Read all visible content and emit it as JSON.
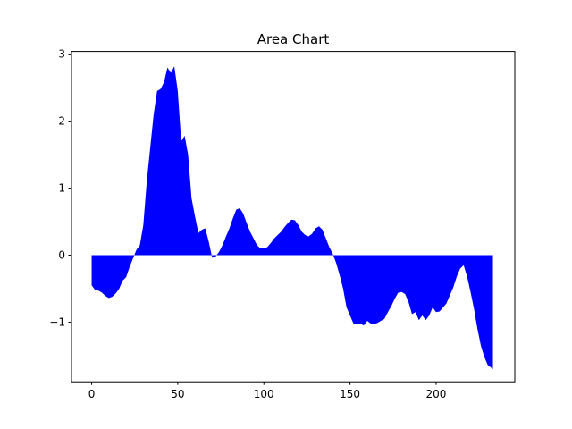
{
  "chart_data": {
    "type": "area",
    "title": "Area Chart",
    "xlabel": "",
    "ylabel": "",
    "xlim": [
      -11.7,
      245.7
    ],
    "ylim": [
      -1.89,
      3.04
    ],
    "xticks": [
      0,
      50,
      100,
      150,
      200
    ],
    "yticks": [
      -1,
      0,
      1,
      2,
      3
    ],
    "xtick_labels": [
      "0",
      "50",
      "100",
      "150",
      "200"
    ],
    "ytick_labels": [
      "−1",
      "0",
      "1",
      "2",
      "3"
    ],
    "grid": false,
    "fill_color": "#0000ff",
    "baseline": 0,
    "x": [
      0,
      2,
      4,
      6,
      8,
      10,
      12,
      14,
      16,
      18,
      20,
      22,
      24,
      26,
      28,
      30,
      32,
      34,
      36,
      38,
      40,
      42,
      44,
      46,
      48,
      50,
      52,
      54,
      56,
      58,
      60,
      62,
      64,
      66,
      68,
      70,
      72,
      74,
      76,
      78,
      80,
      82,
      84,
      86,
      88,
      90,
      92,
      94,
      96,
      98,
      100,
      102,
      104,
      106,
      108,
      110,
      112,
      114,
      116,
      118,
      120,
      122,
      124,
      126,
      128,
      130,
      132,
      134,
      136,
      138,
      140,
      142,
      144,
      146,
      148,
      150,
      152,
      154,
      156,
      158,
      160,
      162,
      164,
      166,
      168,
      170,
      172,
      174,
      176,
      178,
      180,
      182,
      184,
      186,
      188,
      190,
      192,
      194,
      196,
      198,
      200,
      202,
      204,
      206,
      208,
      210,
      212,
      214,
      216,
      218,
      220,
      222,
      224,
      226,
      228,
      230,
      232,
      233
    ],
    "y": [
      -0.45,
      -0.52,
      -0.53,
      -0.56,
      -0.61,
      -0.64,
      -0.62,
      -0.57,
      -0.5,
      -0.38,
      -0.33,
      -0.18,
      -0.05,
      0.08,
      0.15,
      0.45,
      1.1,
      1.6,
      2.1,
      2.45,
      2.48,
      2.58,
      2.8,
      2.72,
      2.82,
      2.45,
      1.7,
      1.78,
      1.5,
      0.85,
      0.58,
      0.33,
      0.38,
      0.4,
      0.2,
      -0.04,
      -0.02,
      0.05,
      0.15,
      0.28,
      0.4,
      0.55,
      0.68,
      0.7,
      0.62,
      0.48,
      0.35,
      0.25,
      0.15,
      0.1,
      0.1,
      0.12,
      0.18,
      0.25,
      0.3,
      0.35,
      0.42,
      0.48,
      0.53,
      0.52,
      0.45,
      0.35,
      0.3,
      0.28,
      0.32,
      0.4,
      0.43,
      0.38,
      0.25,
      0.12,
      0.02,
      -0.12,
      -0.3,
      -0.5,
      -0.78,
      -0.9,
      -1.02,
      -1.02,
      -1.02,
      -1.05,
      -0.98,
      -1.02,
      -1.03,
      -1.01,
      -0.98,
      -0.95,
      -0.85,
      -0.76,
      -0.65,
      -0.56,
      -0.55,
      -0.58,
      -0.7,
      -0.88,
      -0.85,
      -0.97,
      -0.9,
      -0.97,
      -0.9,
      -0.78,
      -0.85,
      -0.84,
      -0.78,
      -0.72,
      -0.6,
      -0.48,
      -0.32,
      -0.2,
      -0.15,
      -0.32,
      -0.55,
      -0.8,
      -1.1,
      -1.35,
      -1.52,
      -1.64,
      -1.68,
      -1.7
    ]
  }
}
